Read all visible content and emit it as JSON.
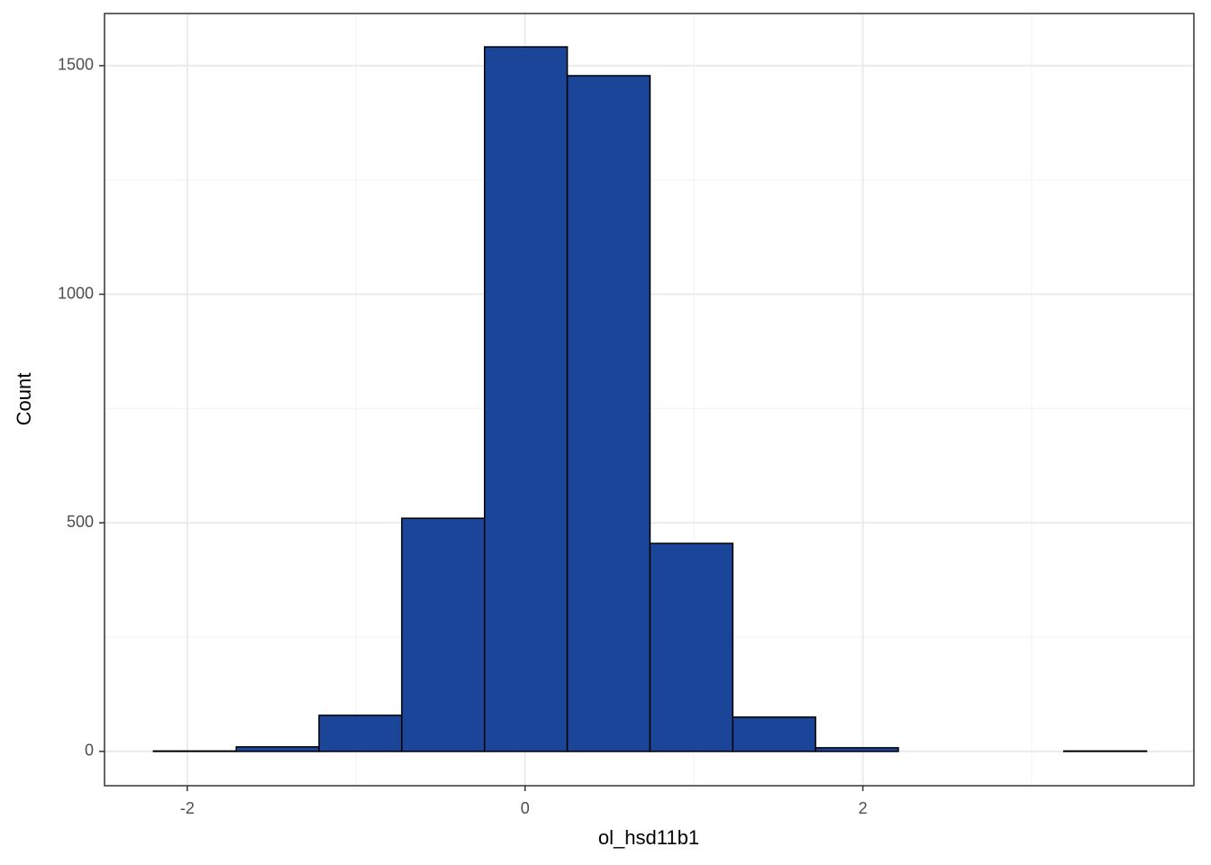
{
  "chart_data": {
    "type": "histogram",
    "x_label": "ol_hsd11b1",
    "y_label": "Count",
    "bins": [
      -2.2,
      -1.71,
      -1.22,
      -0.73,
      -0.24,
      0.25,
      0.74,
      1.23,
      1.72,
      2.21,
      2.7,
      3.19,
      3.68
    ],
    "counts": [
      1,
      10,
      79,
      510,
      1541,
      1478,
      455,
      75,
      8,
      0,
      0,
      1
    ],
    "color": "#1a4599",
    "xlim": [
      -2.49,
      3.96
    ],
    "ylim": [
      -75,
      1614
    ],
    "xticks": [
      -2,
      0,
      2
    ],
    "yticks": [
      0,
      500,
      1000,
      1500
    ],
    "x_minor_ticks": [
      -1,
      1,
      3
    ],
    "y_minor_ticks": [
      250,
      750,
      1250
    ],
    "grid": true
  }
}
